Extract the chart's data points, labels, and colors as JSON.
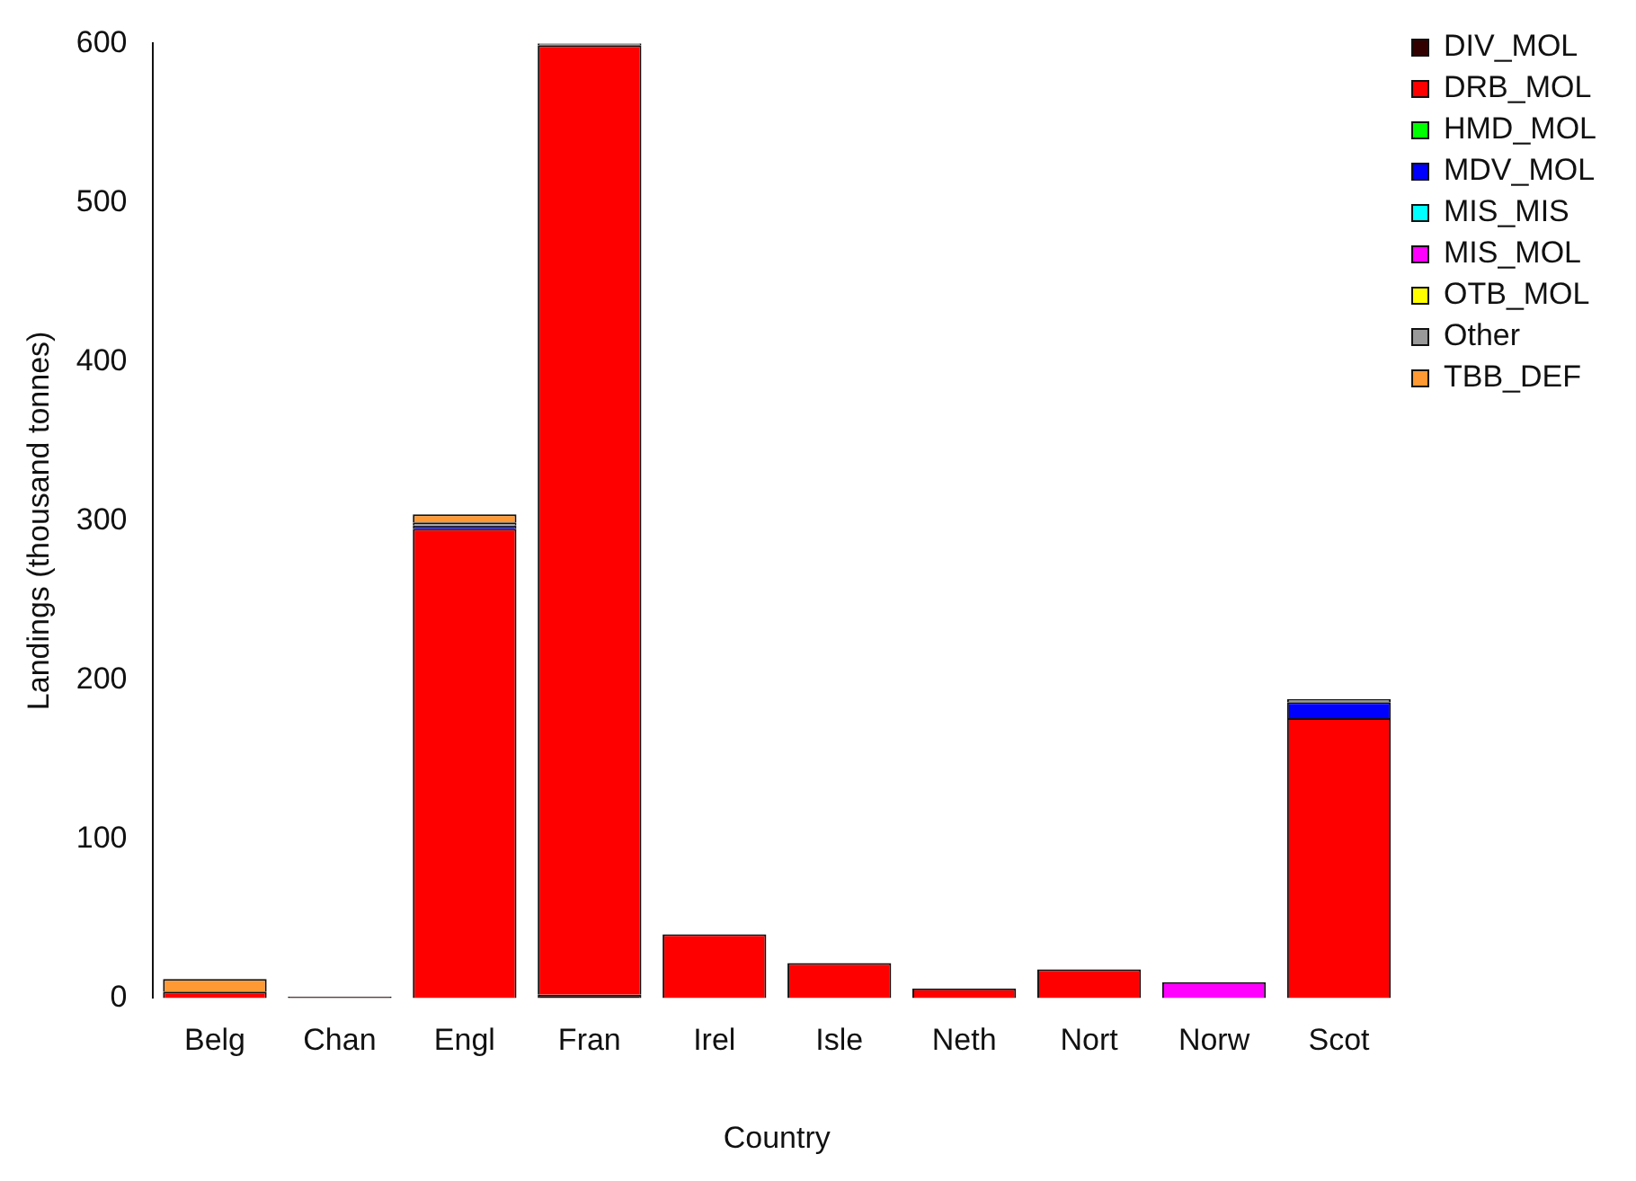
{
  "chart_data": {
    "type": "bar",
    "stacked": true,
    "xlabel": "Country",
    "ylabel": "Landings (thousand tonnes)",
    "categories": [
      "Belg",
      "Chan",
      "Engl",
      "Fran",
      "Irel",
      "Isle",
      "Neth",
      "Nort",
      "Norw",
      "Scot"
    ],
    "series": [
      {
        "name": "DIV_MOL",
        "color": "#330000",
        "values": [
          0,
          1,
          0,
          2,
          0,
          0,
          0,
          0,
          0,
          0
        ]
      },
      {
        "name": "DRB_MOL",
        "color": "#ff0000",
        "values": [
          4,
          0,
          295,
          597,
          40,
          22,
          6,
          18,
          0,
          176
        ]
      },
      {
        "name": "HMD_MOL",
        "color": "#00ff00",
        "values": [
          0,
          0,
          0,
          0,
          0,
          0,
          0,
          0,
          0,
          0
        ]
      },
      {
        "name": "MDV_MOL",
        "color": "#0000ff",
        "values": [
          0,
          0,
          2,
          0,
          0,
          0,
          0,
          0,
          0,
          10
        ]
      },
      {
        "name": "MIS_MIS",
        "color": "#00ffff",
        "values": [
          0,
          0,
          0,
          0,
          0,
          0,
          0,
          0,
          0,
          0
        ]
      },
      {
        "name": "MIS_MOL",
        "color": "#ff00ff",
        "values": [
          0,
          0,
          0,
          0,
          0,
          0,
          0,
          0,
          10,
          0
        ]
      },
      {
        "name": "OTB_MOL",
        "color": "#ffff00",
        "values": [
          0,
          0,
          0,
          0,
          0,
          0,
          0,
          0,
          0,
          0
        ]
      },
      {
        "name": "Other",
        "color": "#999999",
        "values": [
          0,
          0,
          2,
          2,
          0,
          0,
          0,
          0,
          0,
          2
        ]
      },
      {
        "name": "TBB_DEF",
        "color": "#ff9933",
        "values": [
          8,
          0,
          5,
          0,
          0,
          0,
          0,
          0,
          0,
          0
        ]
      }
    ],
    "ylim": [
      0,
      600
    ],
    "yticks": [
      0,
      100,
      200,
      300,
      400,
      500,
      600
    ],
    "grid": false,
    "legend": "top right"
  }
}
